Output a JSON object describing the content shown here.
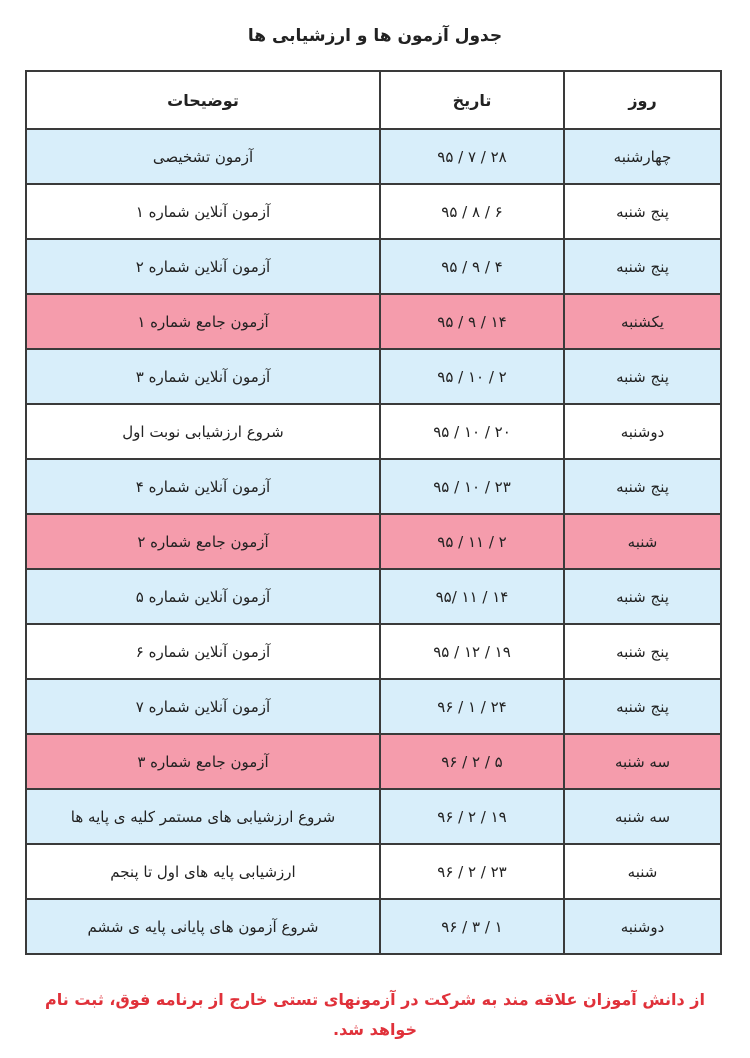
{
  "title": "جدول آزمون ها و ارزشیابی ها",
  "table": {
    "headers": {
      "day": "روز",
      "date": "تاریخ",
      "description": "توضیحات"
    },
    "colors": {
      "blue": "#d8eefa",
      "white": "#ffffff",
      "pink": "#f59cac"
    },
    "rows": [
      {
        "day": "چهارشنبه",
        "date": "۹۵ / ۷ / ۲۸",
        "description": "آزمون تشخیصی",
        "color": "blue"
      },
      {
        "day": "پنج شنبه",
        "date": "۹۵ / ۸ / ۶",
        "description": "آزمون آنلاین شماره ۱",
        "color": "white"
      },
      {
        "day": "پنج شنبه",
        "date": "۹۵ / ۹ / ۴",
        "description": "آزمون آنلاین شماره ۲",
        "color": "blue"
      },
      {
        "day": "یکشنبه",
        "date": "۹۵ / ۹ / ۱۴",
        "description": "آزمون جامع شماره ۱",
        "color": "pink"
      },
      {
        "day": "پنج شنبه",
        "date": "۹۵ / ۱۰ / ۲",
        "description": "آزمون آنلاین شماره ۳",
        "color": "blue"
      },
      {
        "day": "دوشنبه",
        "date": "۹۵ / ۱۰ / ۲۰",
        "description": "شروع ارزشیابی نوبت اول",
        "color": "white"
      },
      {
        "day": "پنج شنبه",
        "date": "۹۵ / ۱۰ / ۲۳",
        "description": "آزمون آنلاین شماره ۴",
        "color": "blue"
      },
      {
        "day": "شنبه",
        "date": "۹۵ / ۱۱ / ۲",
        "description": "آزمون جامع شماره ۲",
        "color": "pink"
      },
      {
        "day": "پنج شنبه",
        "date": "۹۵/ ۱۱ / ۱۴",
        "description": "آزمون آنلاین شماره ۵",
        "color": "blue"
      },
      {
        "day": "پنج شنبه",
        "date": "۹۵ / ۱۲ / ۱۹",
        "description": "آزمون آنلاین شماره ۶",
        "color": "white"
      },
      {
        "day": "پنج شنبه",
        "date": "۹۶ / ۱ / ۲۴",
        "description": "آزمون آنلاین شماره ۷",
        "color": "blue"
      },
      {
        "day": "سه شنبه",
        "date": "۹۶ / ۲ / ۵",
        "description": "آزمون جامع شماره ۳",
        "color": "pink"
      },
      {
        "day": "سه شنبه",
        "date": "۹۶ / ۲ / ۱۹",
        "description": "شروع ارزشیابی های مستمر کلیه ی پایه ها",
        "color": "blue"
      },
      {
        "day": "شنبه",
        "date": "۹۶ / ۲ / ۲۳",
        "description": "ارزشیابی پایه های اول تا پنجم",
        "color": "white"
      },
      {
        "day": "دوشنبه",
        "date": "۹۶ / ۳ / ۱",
        "description": "شروع آزمون های پایانی پایه ی ششم",
        "color": "blue"
      }
    ]
  },
  "note": "از دانش آموزان علاقه مند به شرکت در آزمونهای تستی خارج از برنامه فوق، ثبت نام خواهد شد."
}
